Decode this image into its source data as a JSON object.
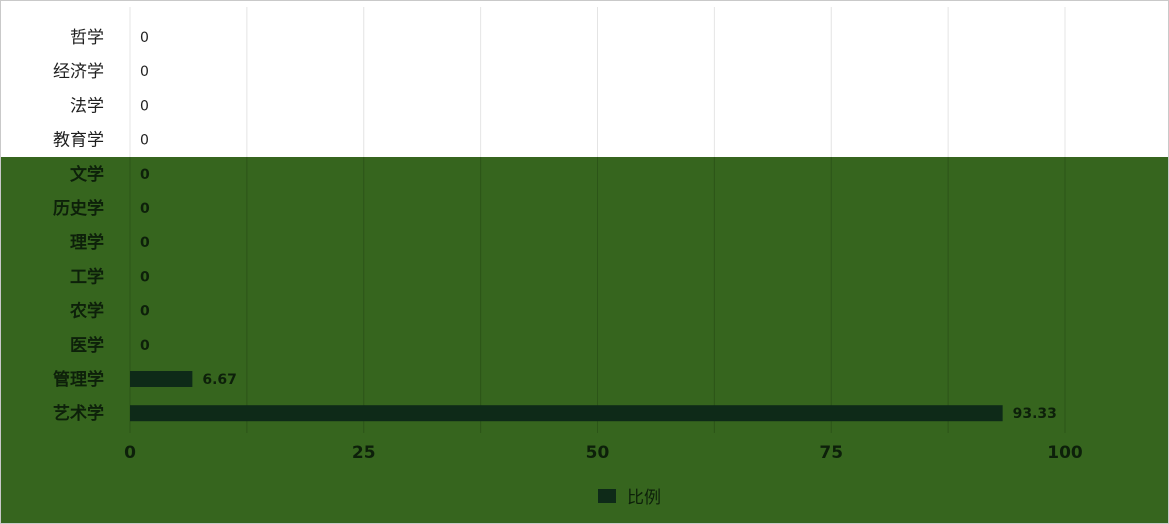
{
  "chart_data": {
    "type": "bar",
    "orientation": "horizontal",
    "categories": [
      "哲学",
      "经济学",
      "法学",
      "教育学",
      "文学",
      "历史学",
      "理学",
      "工学",
      "农学",
      "医学",
      "管理学",
      "艺术学"
    ],
    "series": [
      {
        "name": "比例",
        "values": [
          0,
          0,
          0,
          0,
          0,
          0,
          0,
          0,
          0,
          0,
          6.67,
          93.33
        ],
        "color": "#0e2a18"
      }
    ],
    "xlim": [
      0,
      100
    ],
    "xticks": [
      0,
      25,
      50,
      75,
      100
    ],
    "grid": true,
    "legend": "bottom-center",
    "bar_color": "#0e2a18"
  }
}
